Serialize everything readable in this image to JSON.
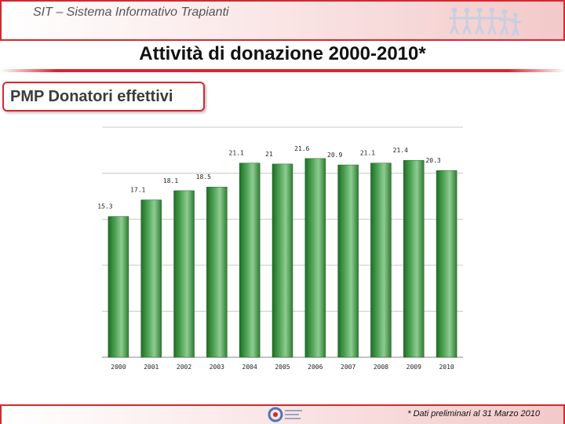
{
  "header": {
    "system_title": "SIT – Sistema Informativo Trapianti"
  },
  "page": {
    "title": "Attività di donazione  2000-2010*",
    "subtitle": "PMP Donatori effettivi",
    "footnote": "* Dati  preliminari al 31 Marzo 2010"
  },
  "colors": {
    "accent": "#d8262e",
    "bar_dark": "#2e7d32",
    "bar_light": "#a5d6a7"
  },
  "icons": {
    "header": "people-chain-icon",
    "footer": "cnt-logo-icon"
  },
  "chart_data": {
    "type": "bar",
    "categories": [
      "2000",
      "2001",
      "2002",
      "2003",
      "2004",
      "2005",
      "2006",
      "2007",
      "2008",
      "2009",
      "2010"
    ],
    "values": [
      15.3,
      17.1,
      18.1,
      18.5,
      21.1,
      21,
      21.6,
      20.9,
      21.1,
      21.4,
      20.3
    ],
    "labels": [
      "15.3",
      "17.1",
      "18.1",
      "18.5",
      "21.1",
      "21",
      "21.6",
      "20.9",
      "21.1",
      "21.4",
      "20.3"
    ],
    "title": "PMP Donatori effettivi",
    "xlabel": "",
    "ylabel": "",
    "ylim": [
      0,
      25
    ],
    "grid": true,
    "legend": "none"
  }
}
